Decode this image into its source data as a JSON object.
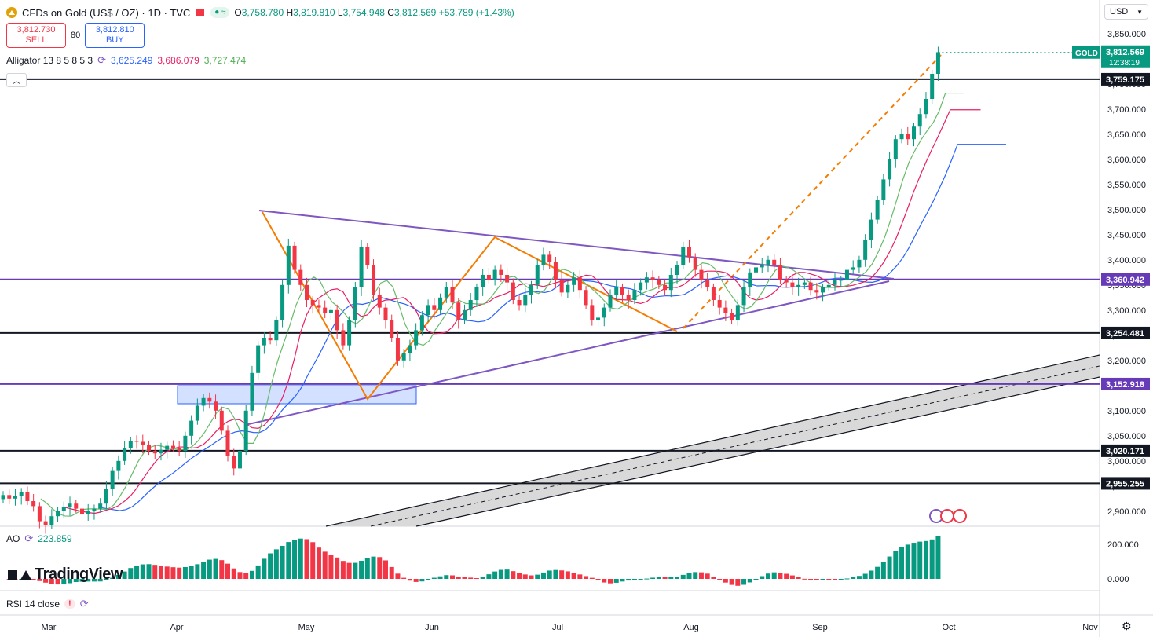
{
  "header": {
    "title": "CFDs on Gold (US$ / OZ) · 1D · TVC",
    "flag_icon": "flag-icon",
    "pair_icons": [
      "dot-icon",
      "wave-icon"
    ],
    "open_label": "O",
    "open": "3,758.780",
    "high_label": "H",
    "high": "3,819.810",
    "low_label": "L",
    "low": "3,754.948",
    "close_label": "C",
    "close": "3,812.569",
    "change": "+53.789 (+1.43%)"
  },
  "trade": {
    "sell_price": "3,812.730",
    "sell_label": "SELL",
    "spread": "80",
    "buy_price": "3,812.810",
    "buy_label": "BUY"
  },
  "alligator": {
    "label": "Alligator 13 8 5 8 5 3",
    "jaw": "3,625.249",
    "teeth": "3,686.079",
    "lips": "3,727.474",
    "jaw_color": "#2962ff",
    "teeth_color": "#f23645",
    "lips_color": "#4caf50"
  },
  "currency": "USD",
  "price_tag": {
    "symbol": "GOLD",
    "price": "3,812.569",
    "countdown": "12:38:19",
    "color": "#089981"
  },
  "levels": [
    {
      "label": "3,759.175",
      "price": 3759.175,
      "color": "#131722",
      "style": "dark"
    },
    {
      "label": "3,360.942",
      "price": 3360.942,
      "color": "#673ab7",
      "style": "purple"
    },
    {
      "label": "3,254.481",
      "price": 3254.481,
      "color": "#131722",
      "style": "dark"
    },
    {
      "label": "3,152.918",
      "price": 3152.918,
      "color": "#673ab7",
      "style": "purple"
    },
    {
      "label": "3,020.171",
      "price": 3020.171,
      "color": "#131722",
      "style": "dark"
    },
    {
      "label": "2,955.255",
      "price": 2955.255,
      "color": "#131722",
      "style": "dark"
    }
  ],
  "ao": {
    "label": "AO",
    "value": "223.859",
    "ticks": [
      "200.000",
      "0.000"
    ]
  },
  "rsi": {
    "label": "RSI 14 close",
    "warning": "!"
  },
  "logo": "TradingView",
  "chart_data": {
    "type": "candlestick",
    "symbol": "CFDs on Gold (US$ / OZ)",
    "interval": "1D",
    "y_ticks": [
      2900,
      2950,
      3000,
      3050,
      3100,
      3150,
      3200,
      3250,
      3300,
      3350,
      3400,
      3450,
      3500,
      3550,
      3600,
      3650,
      3700,
      3750,
      3800,
      3850
    ],
    "y_tick_labels": [
      "2,900.000",
      "2,950.000",
      "3,000.000",
      "3,050.000",
      "3,100.000",
      "3,150.000",
      "3,200.000",
      "3,250.000",
      "3,300.000",
      "3,350.000",
      "3,400.000",
      "3,450.000",
      "3,500.000",
      "3,550.000",
      "3,600.000",
      "3,650.000",
      "3,700.000",
      "3,750.000",
      "3,800.000",
      "3,850.000"
    ],
    "ylim": [
      2870,
      3870
    ],
    "x_labels": [
      "Mar",
      "Apr",
      "May",
      "Jun",
      "Jul",
      "Aug",
      "Sep",
      "Oct",
      "Nov"
    ],
    "bars": 155,
    "closes": [
      2932,
      2925,
      2930,
      2938,
      2920,
      2910,
      2880,
      2872,
      2890,
      2900,
      2908,
      2915,
      2905,
      2895,
      2900,
      2905,
      2915,
      2945,
      2980,
      3000,
      3025,
      3040,
      3038,
      3032,
      3020,
      3015,
      3022,
      3030,
      3025,
      3020,
      3050,
      3080,
      3110,
      3125,
      3118,
      3100,
      3060,
      3010,
      2985,
      3020,
      3100,
      3175,
      3230,
      3245,
      3240,
      3280,
      3350,
      3428,
      3380,
      3350,
      3320,
      3310,
      3305,
      3295,
      3300,
      3260,
      3230,
      3280,
      3345,
      3425,
      3390,
      3330,
      3305,
      3280,
      3245,
      3200,
      3215,
      3230,
      3260,
      3290,
      3310,
      3300,
      3325,
      3345,
      3315,
      3280,
      3300,
      3320,
      3345,
      3370,
      3360,
      3380,
      3370,
      3355,
      3320,
      3310,
      3330,
      3350,
      3390,
      3410,
      3395,
      3360,
      3335,
      3350,
      3365,
      3340,
      3310,
      3280,
      3285,
      3305,
      3330,
      3345,
      3330,
      3320,
      3340,
      3355,
      3365,
      3360,
      3350,
      3340,
      3370,
      3390,
      3425,
      3405,
      3380,
      3360,
      3345,
      3320,
      3305,
      3295,
      3280,
      3310,
      3345,
      3375,
      3385,
      3390,
      3400,
      3390,
      3360,
      3355,
      3345,
      3350,
      3355,
      3340,
      3335,
      3345,
      3350,
      3360,
      3360,
      3380,
      3385,
      3400,
      3440,
      3480,
      3520,
      3560,
      3600,
      3640,
      3650,
      3640,
      3665,
      3690,
      3720,
      3770,
      3813
    ],
    "trend_lines": [
      {
        "name": "triangle-upper",
        "from": [
          3300.0,
          0
        ]
      },
      {
        "name": "triangle-lower"
      }
    ],
    "annotations": [
      "ascending channel",
      "descending triangle",
      "zigzag pattern",
      "demand zone"
    ]
  }
}
